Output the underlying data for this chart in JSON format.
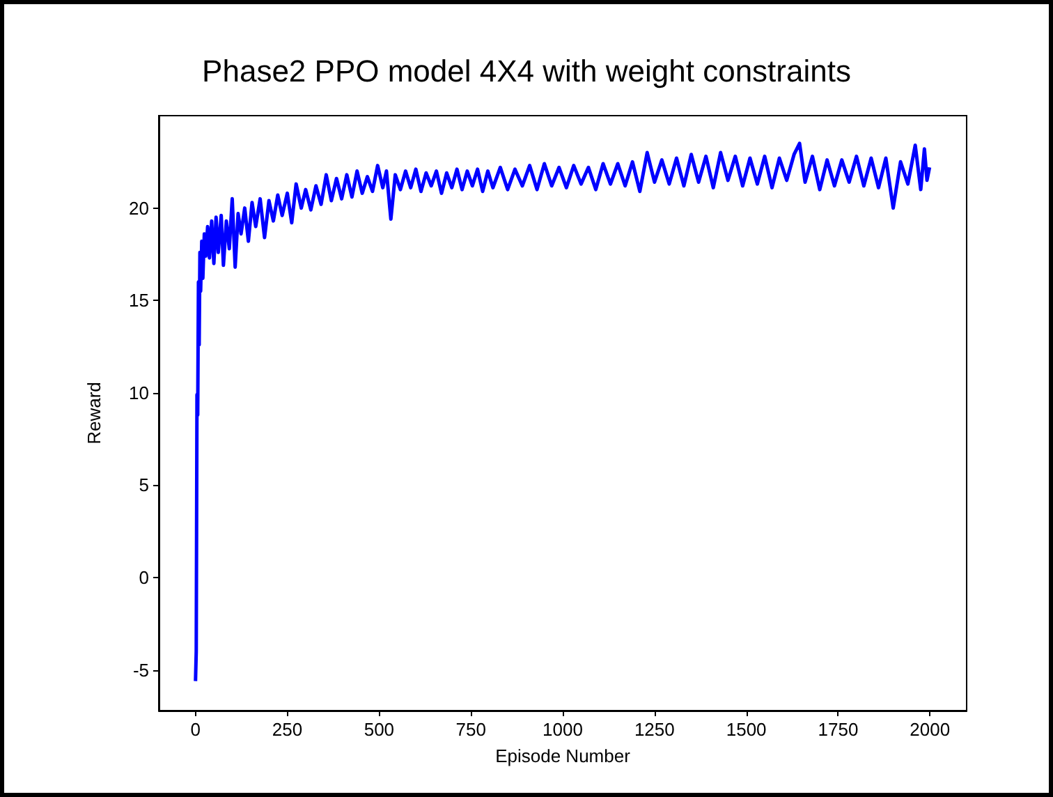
{
  "chart_data": {
    "type": "line",
    "title": "Phase2 PPO model 4X4 with weight constraints",
    "xlabel": "Episode Number",
    "ylabel": "Reward",
    "x": [
      0,
      2,
      4,
      6,
      8,
      10,
      12,
      14,
      17,
      20,
      24,
      28,
      33,
      38,
      44,
      50,
      56,
      62,
      70,
      76,
      84,
      92,
      100,
      108,
      116,
      124,
      134,
      144,
      154,
      164,
      176,
      188,
      200,
      212,
      224,
      236,
      250,
      262,
      274,
      288,
      300,
      314,
      328,
      342,
      356,
      370,
      384,
      398,
      412,
      426,
      440,
      454,
      468,
      482,
      496,
      510,
      520,
      532,
      544,
      558,
      572,
      586,
      600,
      614,
      628,
      642,
      656,
      670,
      684,
      698,
      712,
      726,
      740,
      754,
      768,
      782,
      796,
      810,
      830,
      850,
      870,
      890,
      910,
      930,
      950,
      970,
      990,
      1010,
      1030,
      1050,
      1070,
      1090,
      1110,
      1130,
      1150,
      1170,
      1190,
      1210,
      1230,
      1250,
      1270,
      1290,
      1310,
      1330,
      1350,
      1370,
      1390,
      1410,
      1430,
      1450,
      1470,
      1490,
      1510,
      1530,
      1550,
      1570,
      1590,
      1610,
      1630,
      1645,
      1660,
      1680,
      1700,
      1720,
      1740,
      1760,
      1780,
      1800,
      1820,
      1840,
      1860,
      1880,
      1900,
      1920,
      1940,
      1960,
      1975,
      1985,
      1992,
      1999
    ],
    "series": [
      {
        "color": "#0000ff",
        "values": [
          -5.6,
          -4.0,
          9.9,
          8.8,
          16.0,
          12.6,
          17.6,
          15.5,
          18.2,
          16.2,
          18.6,
          17.4,
          19.0,
          17.3,
          19.3,
          17.0,
          19.5,
          17.6,
          19.6,
          16.9,
          19.3,
          17.8,
          20.5,
          16.8,
          19.7,
          18.6,
          20.0,
          18.2,
          20.3,
          19.0,
          20.5,
          18.4,
          20.4,
          19.3,
          20.7,
          19.6,
          20.8,
          19.2,
          21.3,
          20.0,
          21.0,
          19.9,
          21.2,
          20.2,
          21.8,
          20.4,
          21.6,
          20.5,
          21.8,
          20.6,
          22.0,
          20.8,
          21.7,
          20.9,
          22.3,
          21.1,
          22.0,
          19.4,
          21.8,
          21.0,
          22.0,
          21.1,
          22.1,
          20.9,
          21.9,
          21.2,
          22.0,
          20.8,
          21.9,
          21.1,
          22.1,
          21.0,
          22.0,
          21.2,
          22.1,
          20.9,
          22.0,
          21.1,
          22.2,
          21.0,
          22.1,
          21.2,
          22.3,
          21.0,
          22.4,
          21.2,
          22.2,
          21.1,
          22.3,
          21.3,
          22.2,
          21.0,
          22.4,
          21.3,
          22.4,
          21.2,
          22.5,
          20.9,
          23.0,
          21.4,
          22.6,
          21.3,
          22.7,
          21.2,
          22.9,
          21.4,
          22.8,
          21.1,
          23.0,
          21.5,
          22.8,
          21.2,
          22.7,
          21.3,
          22.8,
          21.1,
          22.7,
          21.5,
          22.9,
          23.5,
          21.4,
          22.8,
          21.0,
          22.6,
          21.2,
          22.6,
          21.4,
          22.8,
          21.2,
          22.7,
          21.1,
          22.7,
          20.0,
          22.5,
          21.3,
          23.4,
          21.0,
          23.2,
          21.5,
          22.2
        ]
      }
    ],
    "xlim": [
      -100,
      2100
    ],
    "xticks": [
      0,
      250,
      500,
      750,
      1000,
      1250,
      1500,
      1750,
      2000
    ],
    "ylim": [
      -7.2,
      25
    ],
    "yticks": [
      -5,
      0,
      5,
      10,
      15,
      20
    ],
    "marker": "none",
    "line_style": "solid"
  }
}
